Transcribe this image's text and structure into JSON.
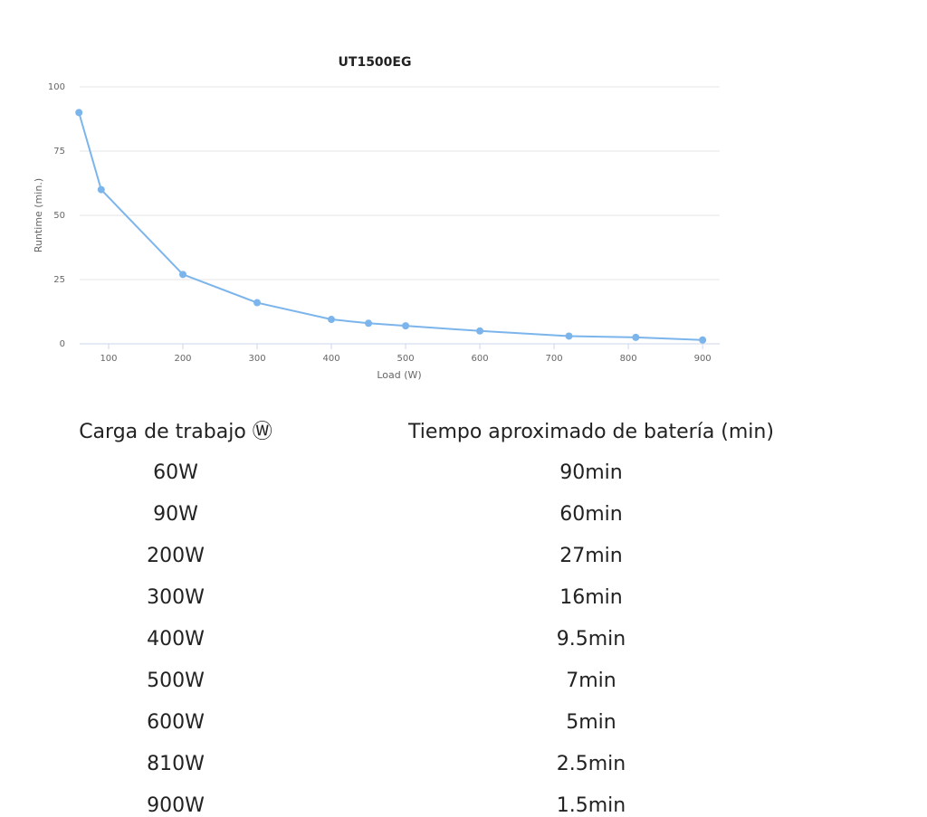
{
  "chart_data": {
    "type": "line",
    "title": "UT1500EG",
    "x_label": "Load (W)",
    "y_label": "Runtime (min.)",
    "x": [
      60,
      90,
      200,
      300,
      400,
      450,
      500,
      600,
      720,
      810,
      900
    ],
    "values": [
      90,
      60,
      27,
      16,
      9.5,
      8,
      7,
      5,
      3,
      2.5,
      1.5
    ],
    "color": "#7cb5ec",
    "xlim": [
      61,
      923
    ],
    "xticks": [
      100,
      200,
      300,
      400,
      500,
      600,
      700,
      800,
      900
    ],
    "ylim": [
      0,
      100
    ],
    "yticks": [
      0,
      25,
      50,
      75,
      100
    ],
    "grid": true
  },
  "table": {
    "headers": [
      "Carga de trabajo Ⓦ",
      "Tiempo aproximado de batería (min)"
    ],
    "rows": [
      [
        "60W",
        "90min"
      ],
      [
        "90W",
        "60min"
      ],
      [
        "200W",
        "27min"
      ],
      [
        "300W",
        "16min"
      ],
      [
        "400W",
        "9.5min"
      ],
      [
        "500W",
        "7min"
      ],
      [
        "600W",
        "5min"
      ],
      [
        "810W",
        "2.5min"
      ],
      [
        "900W",
        "1.5min"
      ]
    ]
  }
}
